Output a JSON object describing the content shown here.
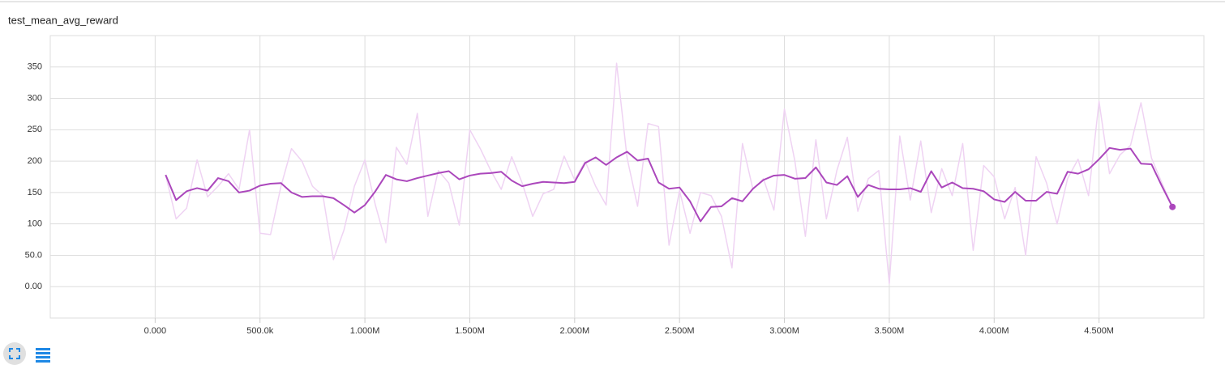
{
  "chart_data": {
    "type": "line",
    "title": "test_mean_avg_reward",
    "xlim": [
      -500000,
      5000000
    ],
    "xticks": [
      {
        "value": 0,
        "label": "0.000"
      },
      {
        "value": 500000,
        "label": "500.0k"
      },
      {
        "value": 1000000,
        "label": "1.000M"
      },
      {
        "value": 1500000,
        "label": "1.500M"
      },
      {
        "value": 2000000,
        "label": "2.000M"
      },
      {
        "value": 2500000,
        "label": "2.500M"
      },
      {
        "value": 3000000,
        "label": "3.000M"
      },
      {
        "value": 3500000,
        "label": "3.500M"
      },
      {
        "value": 4000000,
        "label": "4.000M"
      },
      {
        "value": 4500000,
        "label": "4.500M"
      }
    ],
    "ylim": [
      -50,
      400
    ],
    "yticks": [
      {
        "value": 0,
        "label": "0.00"
      },
      {
        "value": 50,
        "label": "50.0"
      },
      100,
      150,
      200,
      250,
      300,
      350
    ],
    "grid": true,
    "x": [
      50000,
      100000,
      150000,
      200000,
      250000,
      300000,
      350000,
      400000,
      450000,
      500000,
      550000,
      600000,
      650000,
      700000,
      750000,
      800000,
      850000,
      900000,
      950000,
      1000000,
      1050000,
      1100000,
      1150000,
      1200000,
      1250000,
      1300000,
      1350000,
      1400000,
      1450000,
      1500000,
      1550000,
      1600000,
      1650000,
      1700000,
      1750000,
      1800000,
      1850000,
      1900000,
      1950000,
      2000000,
      2050000,
      2100000,
      2150000,
      2200000,
      2250000,
      2300000,
      2350000,
      2400000,
      2450000,
      2500000,
      2550000,
      2600000,
      2650000,
      2700000,
      2750000,
      2800000,
      2850000,
      2900000,
      2950000,
      3000000,
      3050000,
      3100000,
      3150000,
      3200000,
      3250000,
      3300000,
      3350000,
      3400000,
      3450000,
      3500000,
      3550000,
      3600000,
      3650000,
      3700000,
      3750000,
      3800000,
      3850000,
      3900000,
      3950000,
      4000000,
      4050000,
      4100000,
      4150000,
      4200000,
      4250000,
      4300000,
      4350000,
      4400000,
      4450000,
      4500000,
      4550000,
      4600000,
      4650000,
      4700000,
      4750000,
      4800000,
      4850000
    ],
    "series": [
      {
        "color": "#efd3f3",
        "values": [
          178,
          108,
          125,
          202,
          143,
          160,
          180,
          155,
          250,
          85,
          83,
          160,
          220,
          200,
          160,
          145,
          43,
          90,
          160,
          202,
          130,
          70,
          222,
          195,
          276,
          112,
          185,
          165,
          98,
          250,
          220,
          185,
          155,
          207,
          165,
          112,
          148,
          155,
          208,
          170,
          200,
          160,
          130,
          356,
          205,
          128,
          260,
          255,
          66,
          153,
          85,
          150,
          145,
          112,
          30,
          228,
          155,
          172,
          122,
          283,
          200,
          80,
          234,
          108,
          185,
          238,
          120,
          172,
          185,
          5,
          240,
          138,
          232,
          118,
          188,
          145,
          228,
          58,
          193,
          175,
          108,
          158,
          50,
          207,
          165,
          100,
          172,
          203,
          145,
          295,
          180,
          210,
          225,
          293,
          205,
          165,
          127
        ]
      },
      {
        "color": "#ab47bc",
        "values": [
          178,
          138,
          152,
          157,
          153,
          173,
          168,
          150,
          153,
          161,
          164,
          165,
          150,
          143,
          144,
          144,
          141,
          130,
          118,
          130,
          152,
          178,
          171,
          168,
          173,
          177,
          181,
          184,
          171,
          177,
          180,
          181,
          183,
          169,
          160,
          164,
          167,
          166,
          165,
          167,
          197,
          206,
          194,
          206,
          215,
          201,
          204,
          166,
          156,
          158,
          136,
          104,
          127,
          128,
          141,
          136,
          156,
          170,
          177,
          178,
          172,
          173,
          190,
          166,
          162,
          176,
          143,
          162,
          156,
          155,
          155,
          157,
          151,
          184,
          158,
          166,
          157,
          156,
          152,
          139,
          135,
          151,
          137,
          137,
          151,
          148,
          183,
          180,
          187,
          203,
          221,
          218,
          220,
          196,
          195,
          160,
          127
        ]
      }
    ]
  }
}
